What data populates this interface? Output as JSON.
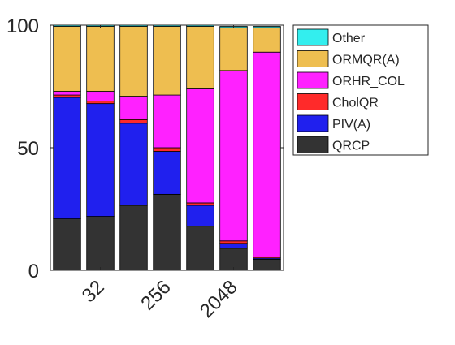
{
  "chart_data": {
    "type": "bar",
    "stacked": true,
    "categories": [
      "1",
      "2",
      "3",
      "4",
      "5",
      "6",
      "7"
    ],
    "x_tick_labels": [
      {
        "category_index": 1,
        "label": "32"
      },
      {
        "category_index": 3,
        "label": "256"
      },
      {
        "category_index": 5,
        "label": "2048"
      }
    ],
    "ylim": [
      0,
      100
    ],
    "yticks": [
      0,
      50,
      100
    ],
    "grid": false,
    "legend_position": "right",
    "series": [
      {
        "name": "QRCP",
        "color": "#333333",
        "values": [
          21,
          22,
          26.5,
          31,
          18,
          9,
          4.5
        ]
      },
      {
        "name": "PIV(A)",
        "color": "#2020ee",
        "values": [
          49.5,
          46,
          33.5,
          17.5,
          8.5,
          2,
          0.5
        ]
      },
      {
        "name": "CholQR",
        "color": "#ff2a2a",
        "values": [
          1,
          1,
          1.5,
          1.5,
          1,
          1,
          0.5
        ]
      },
      {
        "name": "ORHR_COL",
        "color": "#ff21ff",
        "values": [
          1.5,
          4,
          9.5,
          21.5,
          46.5,
          69.5,
          83.5
        ]
      },
      {
        "name": "ORMQR(A)",
        "color": "#eebe50",
        "values": [
          26.5,
          26.5,
          28.5,
          28,
          25.5,
          17.5,
          10
        ]
      },
      {
        "name": "Other",
        "color": "#33eeee",
        "values": [
          0.5,
          0.5,
          0.5,
          0.5,
          0.5,
          0.5,
          0.5
        ]
      }
    ]
  }
}
